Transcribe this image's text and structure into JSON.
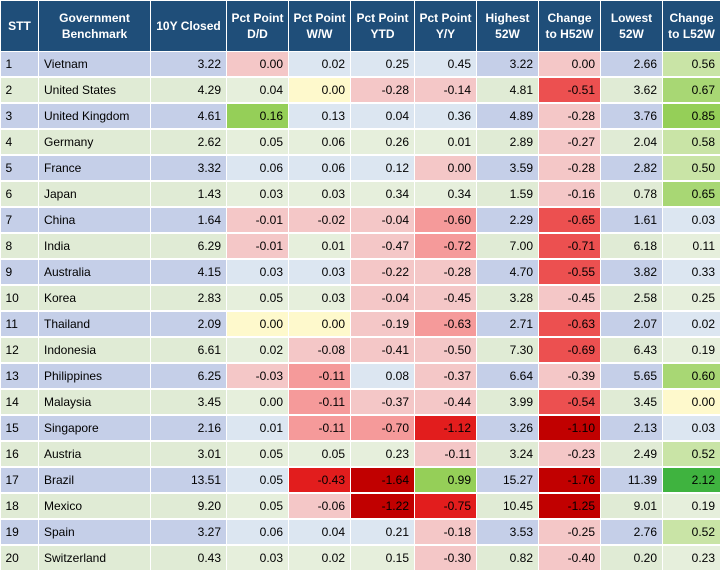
{
  "headers": {
    "stt": "STT",
    "benchmark": "Government Benchmark",
    "closed": "10Y Closed",
    "dd": "Pct Point D/D",
    "ww": "Pct Point W/W",
    "ytd": "Pct Point YTD",
    "yy": "Pct Point Y/Y",
    "high": "Highest 52W",
    "ch_high": "Change to H52W",
    "low": "Lowest 52W",
    "ch_low": "Change to L52W"
  },
  "colors": {
    "header_bg": "#1f4e79",
    "row_odd": "#c5cfe8",
    "row_even": "#e0ebd5",
    "pink": "#f4c7c7",
    "red_light": "#f59a9a",
    "red": "#ec5050",
    "red_strong": "#e21d1d",
    "red_dark": "#c10000",
    "yellow": "#fef9cc",
    "green_light": "#c9e4a6",
    "green": "#95cf58",
    "green_strong": "#3fb33f"
  },
  "rows": [
    {
      "stt": "1",
      "name": "Vietnam",
      "closed": "3.22",
      "dd": "0.00",
      "ww": "0.02",
      "ytd": "0.25",
      "yy": "0.45",
      "high": "3.22",
      "ch_high": "0.00",
      "low": "2.66",
      "ch_low": "0.56",
      "dd_bg": "#f4c7c7",
      "ww_bg": "",
      "ytd_bg": "",
      "yy_bg": "",
      "chh_bg": "#f4c7c7",
      "chl_bg": "#c9e4a6"
    },
    {
      "stt": "2",
      "name": "United States",
      "closed": "4.29",
      "dd": "0.04",
      "ww": "0.00",
      "ytd": "-0.28",
      "yy": "-0.14",
      "high": "4.81",
      "ch_high": "-0.51",
      "low": "3.62",
      "ch_low": "0.67",
      "dd_bg": "",
      "ww_bg": "#fef9cc",
      "ytd_bg": "#f4c7c7",
      "yy_bg": "#f4c7c7",
      "chh_bg": "#ec5050",
      "chl_bg": "#a8d774"
    },
    {
      "stt": "3",
      "name": "United Kingdom",
      "closed": "4.61",
      "dd": "0.16",
      "ww": "0.13",
      "ytd": "0.04",
      "yy": "0.36",
      "high": "4.89",
      "ch_high": "-0.28",
      "low": "3.76",
      "ch_low": "0.85",
      "dd_bg": "#95cf58",
      "ww_bg": "",
      "ytd_bg": "",
      "yy_bg": "",
      "chh_bg": "#f4c7c7",
      "chl_bg": "#95cf58"
    },
    {
      "stt": "4",
      "name": "Germany",
      "closed": "2.62",
      "dd": "0.05",
      "ww": "0.06",
      "ytd": "0.26",
      "yy": "0.01",
      "high": "2.89",
      "ch_high": "-0.27",
      "low": "2.04",
      "ch_low": "0.58",
      "dd_bg": "",
      "ww_bg": "",
      "ytd_bg": "",
      "yy_bg": "",
      "chh_bg": "#f4c7c7",
      "chl_bg": "#c9e4a6"
    },
    {
      "stt": "5",
      "name": "France",
      "closed": "3.32",
      "dd": "0.06",
      "ww": "0.06",
      "ytd": "0.12",
      "yy": "0.00",
      "high": "3.59",
      "ch_high": "-0.28",
      "low": "2.82",
      "ch_low": "0.50",
      "dd_bg": "",
      "ww_bg": "",
      "ytd_bg": "",
      "yy_bg": "#f4c7c7",
      "chh_bg": "#f4c7c7",
      "chl_bg": "#c9e4a6"
    },
    {
      "stt": "6",
      "name": "Japan",
      "closed": "1.43",
      "dd": "0.03",
      "ww": "0.03",
      "ytd": "0.34",
      "yy": "0.34",
      "high": "1.59",
      "ch_high": "-0.16",
      "low": "0.78",
      "ch_low": "0.65",
      "dd_bg": "",
      "ww_bg": "",
      "ytd_bg": "",
      "yy_bg": "",
      "chh_bg": "#f4c7c7",
      "chl_bg": "#a8d774"
    },
    {
      "stt": "7",
      "name": "China",
      "closed": "1.64",
      "dd": "-0.01",
      "ww": "-0.02",
      "ytd": "-0.04",
      "yy": "-0.60",
      "high": "2.29",
      "ch_high": "-0.65",
      "low": "1.61",
      "ch_low": "0.03",
      "dd_bg": "#f4c7c7",
      "ww_bg": "#f4c7c7",
      "ytd_bg": "#f4c7c7",
      "yy_bg": "#f59a9a",
      "chh_bg": "#ec5050",
      "chl_bg": ""
    },
    {
      "stt": "8",
      "name": "India",
      "closed": "6.29",
      "dd": "-0.01",
      "ww": "0.01",
      "ytd": "-0.47",
      "yy": "-0.72",
      "high": "7.00",
      "ch_high": "-0.71",
      "low": "6.18",
      "ch_low": "0.11",
      "dd_bg": "#f4c7c7",
      "ww_bg": "",
      "ytd_bg": "#f4c7c7",
      "yy_bg": "#f59a9a",
      "chh_bg": "#ec5050",
      "chl_bg": ""
    },
    {
      "stt": "9",
      "name": "Australia",
      "closed": "4.15",
      "dd": "0.03",
      "ww": "0.03",
      "ytd": "-0.22",
      "yy": "-0.28",
      "high": "4.70",
      "ch_high": "-0.55",
      "low": "3.82",
      "ch_low": "0.33",
      "dd_bg": "",
      "ww_bg": "",
      "ytd_bg": "#f4c7c7",
      "yy_bg": "#f4c7c7",
      "chh_bg": "#ec5050",
      "chl_bg": ""
    },
    {
      "stt": "10",
      "name": "Korea",
      "closed": "2.83",
      "dd": "0.05",
      "ww": "0.03",
      "ytd": "-0.04",
      "yy": "-0.45",
      "high": "3.28",
      "ch_high": "-0.45",
      "low": "2.58",
      "ch_low": "0.25",
      "dd_bg": "",
      "ww_bg": "",
      "ytd_bg": "#f4c7c7",
      "yy_bg": "#f4c7c7",
      "chh_bg": "#f4c7c7",
      "chl_bg": ""
    },
    {
      "stt": "11",
      "name": "Thailand",
      "closed": "2.09",
      "dd": "0.00",
      "ww": "0.00",
      "ytd": "-0.19",
      "yy": "-0.63",
      "high": "2.71",
      "ch_high": "-0.63",
      "low": "2.07",
      "ch_low": "0.02",
      "dd_bg": "#fef9cc",
      "ww_bg": "#fef9cc",
      "ytd_bg": "#f4c7c7",
      "yy_bg": "#f59a9a",
      "chh_bg": "#ec5050",
      "chl_bg": ""
    },
    {
      "stt": "12",
      "name": "Indonesia",
      "closed": "6.61",
      "dd": "0.02",
      "ww": "-0.08",
      "ytd": "-0.41",
      "yy": "-0.50",
      "high": "7.30",
      "ch_high": "-0.69",
      "low": "6.43",
      "ch_low": "0.19",
      "dd_bg": "",
      "ww_bg": "#f4c7c7",
      "ytd_bg": "#f4c7c7",
      "yy_bg": "#f4c7c7",
      "chh_bg": "#ec5050",
      "chl_bg": ""
    },
    {
      "stt": "13",
      "name": "Philippines",
      "closed": "6.25",
      "dd": "-0.03",
      "ww": "-0.11",
      "ytd": "0.08",
      "yy": "-0.37",
      "high": "6.64",
      "ch_high": "-0.39",
      "low": "5.65",
      "ch_low": "0.60",
      "dd_bg": "#f4c7c7",
      "ww_bg": "#f59a9a",
      "ytd_bg": "",
      "yy_bg": "#f4c7c7",
      "chh_bg": "#f4c7c7",
      "chl_bg": "#a8d774"
    },
    {
      "stt": "14",
      "name": "Malaysia",
      "closed": "3.45",
      "dd": "0.00",
      "ww": "-0.11",
      "ytd": "-0.37",
      "yy": "-0.44",
      "high": "3.99",
      "ch_high": "-0.54",
      "low": "3.45",
      "ch_low": "0.00",
      "dd_bg": "",
      "ww_bg": "#f59a9a",
      "ytd_bg": "#f4c7c7",
      "yy_bg": "#f4c7c7",
      "chh_bg": "#ec5050",
      "chl_bg": "#fef9cc"
    },
    {
      "stt": "15",
      "name": "Singapore",
      "closed": "2.16",
      "dd": "0.01",
      "ww": "-0.11",
      "ytd": "-0.70",
      "yy": "-1.12",
      "high": "3.26",
      "ch_high": "-1.10",
      "low": "2.13",
      "ch_low": "0.03",
      "dd_bg": "",
      "ww_bg": "#f59a9a",
      "ytd_bg": "#f59a9a",
      "yy_bg": "#e21d1d",
      "chh_bg": "#c10000",
      "chl_bg": ""
    },
    {
      "stt": "16",
      "name": "Austria",
      "closed": "3.01",
      "dd": "0.05",
      "ww": "0.05",
      "ytd": "0.23",
      "yy": "-0.11",
      "high": "3.24",
      "ch_high": "-0.23",
      "low": "2.49",
      "ch_low": "0.52",
      "dd_bg": "",
      "ww_bg": "",
      "ytd_bg": "",
      "yy_bg": "#f4c7c7",
      "chh_bg": "#f4c7c7",
      "chl_bg": "#c9e4a6"
    },
    {
      "stt": "17",
      "name": "Brazil",
      "closed": "13.51",
      "dd": "0.05",
      "ww": "-0.43",
      "ytd": "-1.64",
      "yy": "0.99",
      "high": "15.27",
      "ch_high": "-1.76",
      "low": "11.39",
      "ch_low": "2.12",
      "dd_bg": "",
      "ww_bg": "#e21d1d",
      "ytd_bg": "#c10000",
      "yy_bg": "#95cf58",
      "chh_bg": "#c10000",
      "chl_bg": "#3fb33f"
    },
    {
      "stt": "18",
      "name": "Mexico",
      "closed": "9.20",
      "dd": "0.05",
      "ww": "-0.06",
      "ytd": "-1.22",
      "yy": "-0.75",
      "high": "10.45",
      "ch_high": "-1.25",
      "low": "9.01",
      "ch_low": "0.19",
      "dd_bg": "",
      "ww_bg": "#f4c7c7",
      "ytd_bg": "#c10000",
      "yy_bg": "#e21d1d",
      "chh_bg": "#c10000",
      "chl_bg": ""
    },
    {
      "stt": "19",
      "name": "Spain",
      "closed": "3.27",
      "dd": "0.06",
      "ww": "0.04",
      "ytd": "0.21",
      "yy": "-0.18",
      "high": "3.53",
      "ch_high": "-0.25",
      "low": "2.76",
      "ch_low": "0.52",
      "dd_bg": "",
      "ww_bg": "",
      "ytd_bg": "",
      "yy_bg": "#f4c7c7",
      "chh_bg": "#f4c7c7",
      "chl_bg": "#c9e4a6"
    },
    {
      "stt": "20",
      "name": "Switzerland",
      "closed": "0.43",
      "dd": "0.03",
      "ww": "0.02",
      "ytd": "0.15",
      "yy": "-0.30",
      "high": "0.82",
      "ch_high": "-0.40",
      "low": "0.20",
      "ch_low": "0.23",
      "dd_bg": "",
      "ww_bg": "",
      "ytd_bg": "",
      "yy_bg": "#f4c7c7",
      "chh_bg": "#f4c7c7",
      "chl_bg": ""
    }
  ]
}
